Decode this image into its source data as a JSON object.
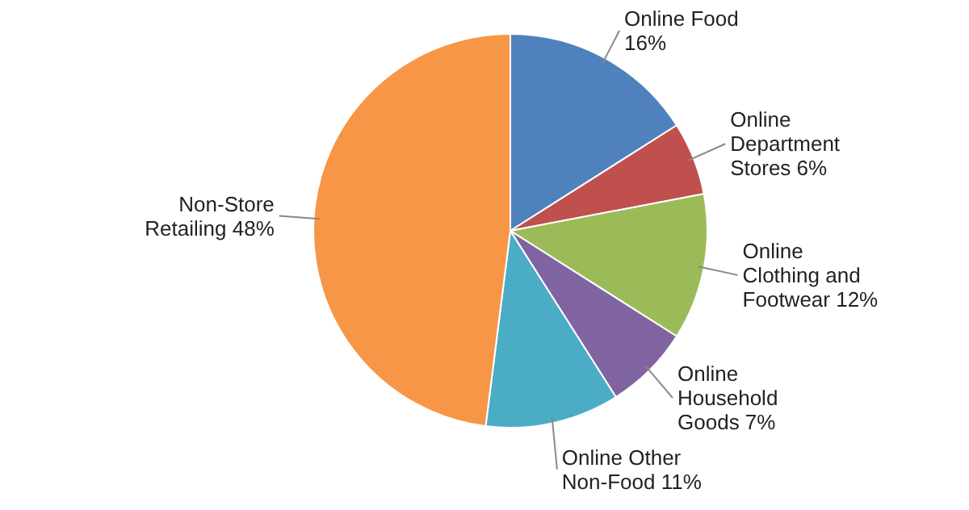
{
  "chart_data": {
    "type": "pie",
    "categories": [
      "Online Food",
      "Online Department Stores",
      "Online Clothing and Footwear",
      "Online Household Goods",
      "Online Other Non-Food",
      "Non-Store Retailing"
    ],
    "values": [
      16,
      6,
      12,
      7,
      11,
      48
    ],
    "colors": [
      "#4f81bd",
      "#c0504d",
      "#9bbb59",
      "#8064a2",
      "#4bacc6",
      "#f79646"
    ],
    "value_labels": [
      "16%",
      "6%",
      "12%",
      "7%",
      "11%",
      "48%"
    ]
  }
}
